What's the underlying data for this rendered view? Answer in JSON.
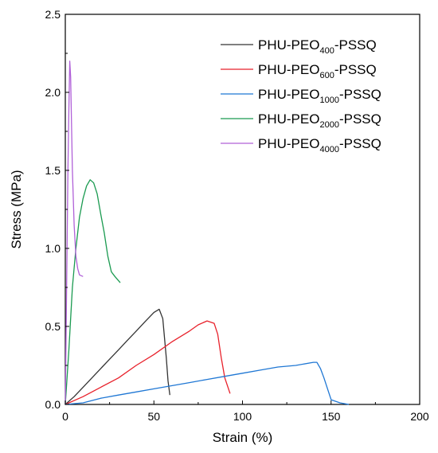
{
  "chart_data": {
    "type": "line",
    "title": "",
    "xlabel": "Strain (%)",
    "ylabel": "Stress (MPa)",
    "xlim": [
      0,
      200
    ],
    "ylim": [
      0,
      2.5
    ],
    "xticks": [
      0,
      50,
      100,
      150,
      200
    ],
    "yticks": [
      0.0,
      0.5,
      1.0,
      1.5,
      2.0,
      2.5
    ],
    "xtick_labels": [
      "0",
      "50",
      "100",
      "150",
      "200"
    ],
    "ytick_labels": [
      "0.0",
      "0.5",
      "1.0",
      "1.5",
      "2.0",
      "2.5"
    ],
    "grid": false,
    "legend_position": "top-right",
    "series": [
      {
        "name": "PHU-PEO400-PSSQ",
        "legend_parts": [
          "PHU-PEO",
          "400",
          "-PSSQ"
        ],
        "color": "#333333",
        "x": [
          0,
          5,
          10,
          15,
          20,
          25,
          30,
          35,
          40,
          45,
          50,
          53,
          55,
          57,
          58,
          59
        ],
        "y": [
          0,
          0.05,
          0.11,
          0.17,
          0.23,
          0.29,
          0.35,
          0.41,
          0.47,
          0.53,
          0.59,
          0.61,
          0.55,
          0.3,
          0.15,
          0.06
        ]
      },
      {
        "name": "PHU-PEO600-PSSQ",
        "legend_parts": [
          "PHU-PEO",
          "600",
          "-PSSQ"
        ],
        "color": "#e8212b",
        "x": [
          0,
          10,
          20,
          30,
          40,
          50,
          60,
          70,
          75,
          80,
          84,
          86,
          88,
          90,
          93
        ],
        "y": [
          0,
          0.05,
          0.11,
          0.17,
          0.25,
          0.32,
          0.4,
          0.47,
          0.51,
          0.535,
          0.52,
          0.45,
          0.3,
          0.17,
          0.07
        ]
      },
      {
        "name": "PHU-PEO1000-PSSQ",
        "legend_parts": [
          "PHU-PEO",
          "1000",
          "-PSSQ"
        ],
        "color": "#1f77d4",
        "x": [
          0,
          10,
          20,
          30,
          40,
          50,
          60,
          70,
          80,
          90,
          100,
          110,
          120,
          130,
          140,
          142,
          144,
          146,
          148,
          150,
          155,
          160
        ],
        "y": [
          0,
          0.01,
          0.04,
          0.06,
          0.08,
          0.1,
          0.12,
          0.14,
          0.16,
          0.18,
          0.2,
          0.22,
          0.24,
          0.25,
          0.27,
          0.27,
          0.23,
          0.17,
          0.1,
          0.03,
          0.01,
          0.0
        ]
      },
      {
        "name": "PHU-PEO2000-PSSQ",
        "legend_parts": [
          "PHU-PEO",
          "2000",
          "-PSSQ"
        ],
        "color": "#1a9a50",
        "x": [
          0,
          2,
          4,
          6,
          8,
          10,
          12,
          14,
          16,
          18,
          20,
          22,
          24,
          26,
          28,
          31
        ],
        "y": [
          0,
          0.35,
          0.75,
          1.0,
          1.2,
          1.32,
          1.4,
          1.44,
          1.42,
          1.35,
          1.22,
          1.1,
          0.95,
          0.85,
          0.82,
          0.78
        ]
      },
      {
        "name": "PHU-PEO4000-PSSQ",
        "legend_parts": [
          "PHU-PEO",
          "4000",
          "-PSSQ"
        ],
        "color": "#b060d8",
        "x": [
          0,
          0.5,
          1,
          1.5,
          2,
          2.5,
          3,
          3.5,
          4,
          5,
          6,
          7,
          8,
          10
        ],
        "y": [
          0,
          0.5,
          1.0,
          1.5,
          1.9,
          2.2,
          2.1,
          1.8,
          1.5,
          1.15,
          0.95,
          0.87,
          0.83,
          0.82
        ]
      }
    ]
  }
}
